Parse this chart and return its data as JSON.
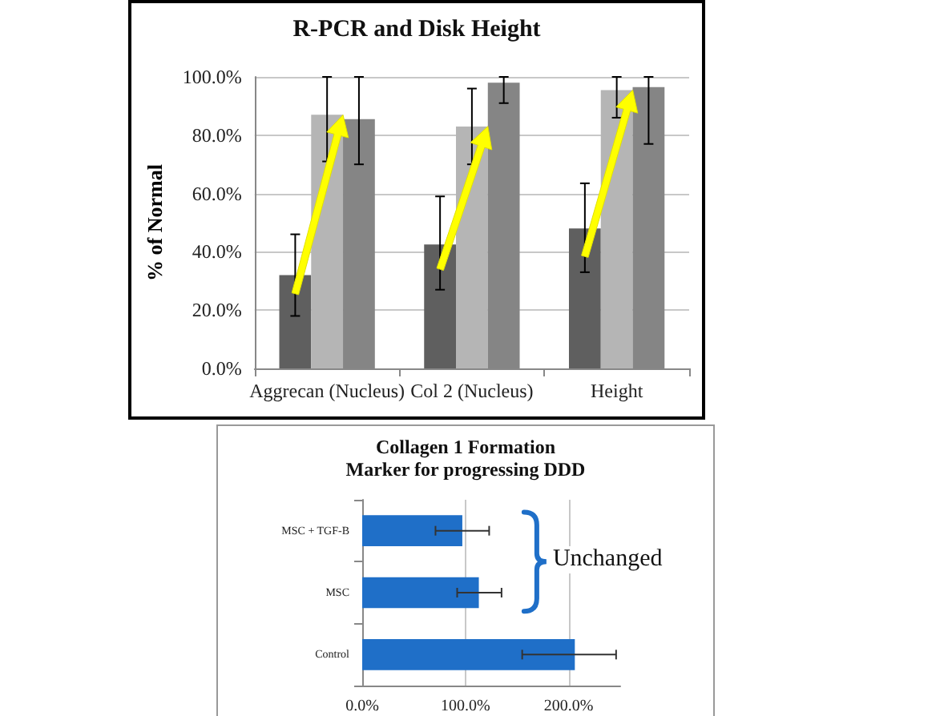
{
  "chart_data": [
    {
      "type": "bar",
      "title": "R-PCR and Disk Height",
      "ylabel": "% of Normal",
      "categories": [
        "Aggrecan (Nucleus)",
        "Col 2 (Nucleus)",
        "Height"
      ],
      "series": [
        {
          "color": "#5f5f5f",
          "values": [
            32,
            42.5,
            48
          ],
          "errors": [
            [
              18,
              46
            ],
            [
              27,
              59
            ],
            [
              33,
              63.5
            ]
          ]
        },
        {
          "color": "#b5b5b5",
          "values": [
            87,
            83,
            95.5
          ],
          "errors": [
            [
              71,
              100
            ],
            [
              70,
              96
            ],
            [
              86,
              100
            ]
          ]
        },
        {
          "color": "#858585",
          "values": [
            85.5,
            98,
            96.5
          ],
          "errors": [
            [
              70,
              100
            ],
            [
              91,
              100
            ],
            [
              77,
              100
            ]
          ]
        }
      ],
      "ylim": [
        0,
        100
      ],
      "yticks": [
        {
          "value": 0,
          "label": "0.0%"
        },
        {
          "value": 20,
          "label": "20.0%"
        },
        {
          "value": 40,
          "label": "40.0%"
        },
        {
          "value": 60,
          "label": "60.0%"
        },
        {
          "value": 80,
          "label": "80.0%"
        },
        {
          "value": 100,
          "label": "100.0%"
        }
      ],
      "grid": "y"
    },
    {
      "type": "bar",
      "orientation": "horizontal",
      "title": "Collagen 1 Formation",
      "subtitle": "Marker for progressing DDD",
      "categories": [
        "MSC + TGF-B",
        "MSC",
        "Control"
      ],
      "series": [
        {
          "color": "#1f6fc8",
          "values": [
            97,
            113,
            206
          ],
          "errors": [
            [
              71,
              123
            ],
            [
              92,
              135
            ],
            [
              155,
              246
            ]
          ]
        }
      ],
      "xlim": [
        0,
        250
      ],
      "xticks": [
        {
          "value": 0,
          "label": "0.0%"
        },
        {
          "value": 100,
          "label": "100.0%"
        },
        {
          "value": 200,
          "label": "200.0%"
        }
      ],
      "grid": "x",
      "annotations": [
        "Unchanged"
      ]
    }
  ]
}
